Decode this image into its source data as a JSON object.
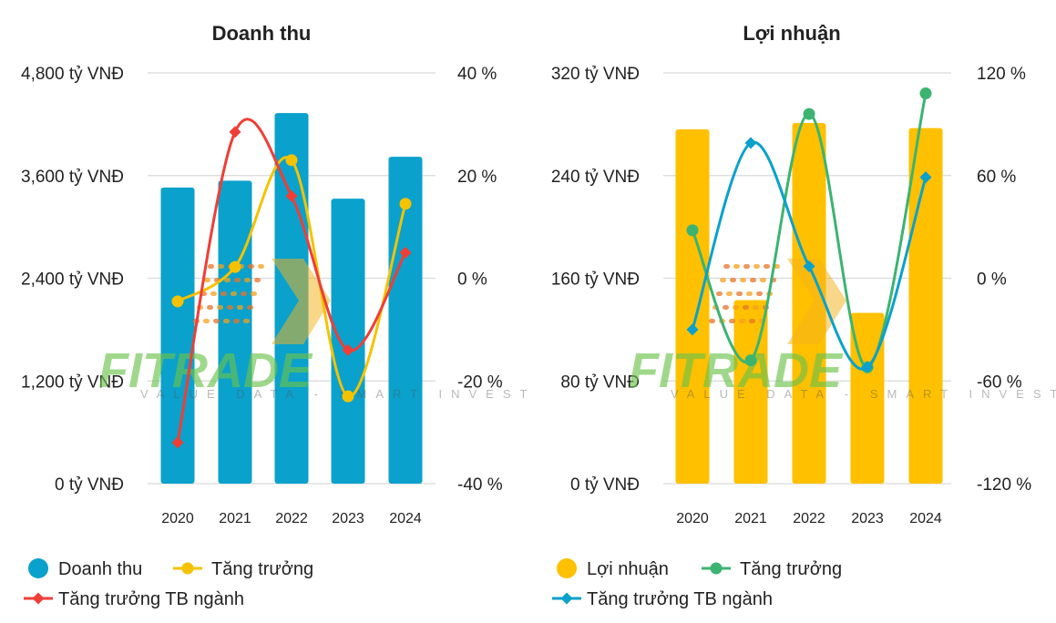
{
  "chart_data": [
    {
      "type": "bar",
      "title": "Doanh thu",
      "categories": [
        "2020",
        "2021",
        "2022",
        "2023",
        "2024"
      ],
      "left_axis": {
        "ticks": [
          "0 tỷ VNĐ",
          "1,200 tỷ VNĐ",
          "2,400 tỷ VNĐ",
          "3,600 tỷ VNĐ",
          "4,800 tỷ VNĐ"
        ],
        "ylim": [
          0,
          4800
        ]
      },
      "right_axis": {
        "ticks": [
          "-40 %",
          "-20 %",
          "0 %",
          "20 %",
          "40 %"
        ],
        "ylim": [
          -40,
          40
        ]
      },
      "bar_series": {
        "name": "Doanh thu",
        "color": "#0aa1cc",
        "values": [
          3460,
          3540,
          4330,
          3330,
          3820
        ]
      },
      "line_series": [
        {
          "name": "Tăng trưởng",
          "color": "#f5c200",
          "marker": "circle",
          "values": [
            -4.5,
            2.2,
            23,
            -23,
            14.5
          ]
        },
        {
          "name": "Tăng trưởng TB ngành",
          "color": "#ef3e36",
          "marker": "diamond",
          "values": [
            -32,
            28.5,
            16,
            -14,
            5
          ]
        }
      ],
      "legend": "bottom"
    },
    {
      "type": "bar",
      "title": "Lợi nhuận",
      "categories": [
        "2020",
        "2021",
        "2022",
        "2023",
        "2024"
      ],
      "left_axis": {
        "ticks": [
          "0 tỷ VNĐ",
          "80 tỷ VNĐ",
          "160 tỷ VNĐ",
          "240 tỷ VNĐ",
          "320 tỷ VNĐ"
        ],
        "ylim": [
          0,
          320
        ]
      },
      "right_axis": {
        "ticks": [
          "-120 %",
          "-60 %",
          "0 %",
          "60 %",
          "120 %"
        ],
        "ylim": [
          -120,
          120
        ]
      },
      "bar_series": {
        "name": "Lợi nhuận",
        "color": "#ffc000",
        "values": [
          276,
          143,
          281,
          133,
          277
        ]
      },
      "line_series": [
        {
          "name": "Tăng trưởng",
          "color": "#3cb371",
          "marker": "circle",
          "values": [
            28,
            -48,
            96,
            -52,
            108
          ]
        },
        {
          "name": "Tăng trưởng TB ngành",
          "color": "#0aa1cc",
          "marker": "diamond",
          "values": [
            -30,
            79,
            7,
            -52,
            59
          ]
        }
      ],
      "legend": "bottom"
    }
  ],
  "watermark": {
    "brand": "FITRADE",
    "tagline": "VALUE DATA - SMART INVEST"
  }
}
